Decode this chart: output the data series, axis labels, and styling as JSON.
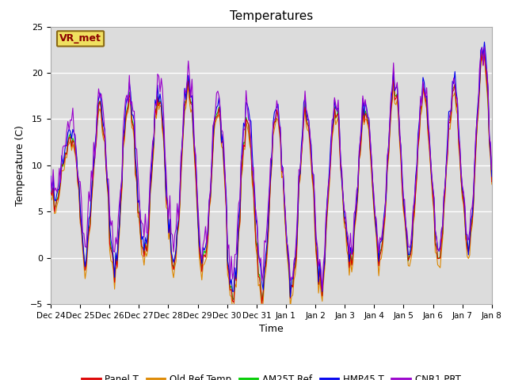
{
  "title": "Temperatures",
  "xlabel": "Time",
  "ylabel": "Temperature (C)",
  "ylim": [
    -5,
    25
  ],
  "xlim": [
    0,
    360
  ],
  "legend_labels": [
    "Panel T",
    "Old Ref Temp",
    "AM25T Ref",
    "HMP45 T",
    "CNR1 PRT"
  ],
  "legend_colors": [
    "#dd0000",
    "#dd8800",
    "#00cc00",
    "#0000ee",
    "#9900cc"
  ],
  "station_label": "VR_met",
  "x_tick_labels": [
    "Dec 24",
    "Dec 25",
    "Dec 26",
    "Dec 27",
    "Dec 28",
    "Dec 29",
    "Dec 30",
    "Dec 31",
    "Jan 1",
    "Jan 2",
    "Jan 3",
    "Jan 4",
    "Jan 5",
    "Jan 6",
    "Jan 7",
    "Jan 8"
  ],
  "x_tick_positions": [
    0,
    24,
    48,
    72,
    96,
    120,
    144,
    168,
    192,
    216,
    240,
    264,
    288,
    312,
    336,
    360
  ],
  "background_color": "#e8e8e8",
  "plot_bg_color": "#dcdcdc",
  "line_width": 0.8,
  "n_points": 3600
}
